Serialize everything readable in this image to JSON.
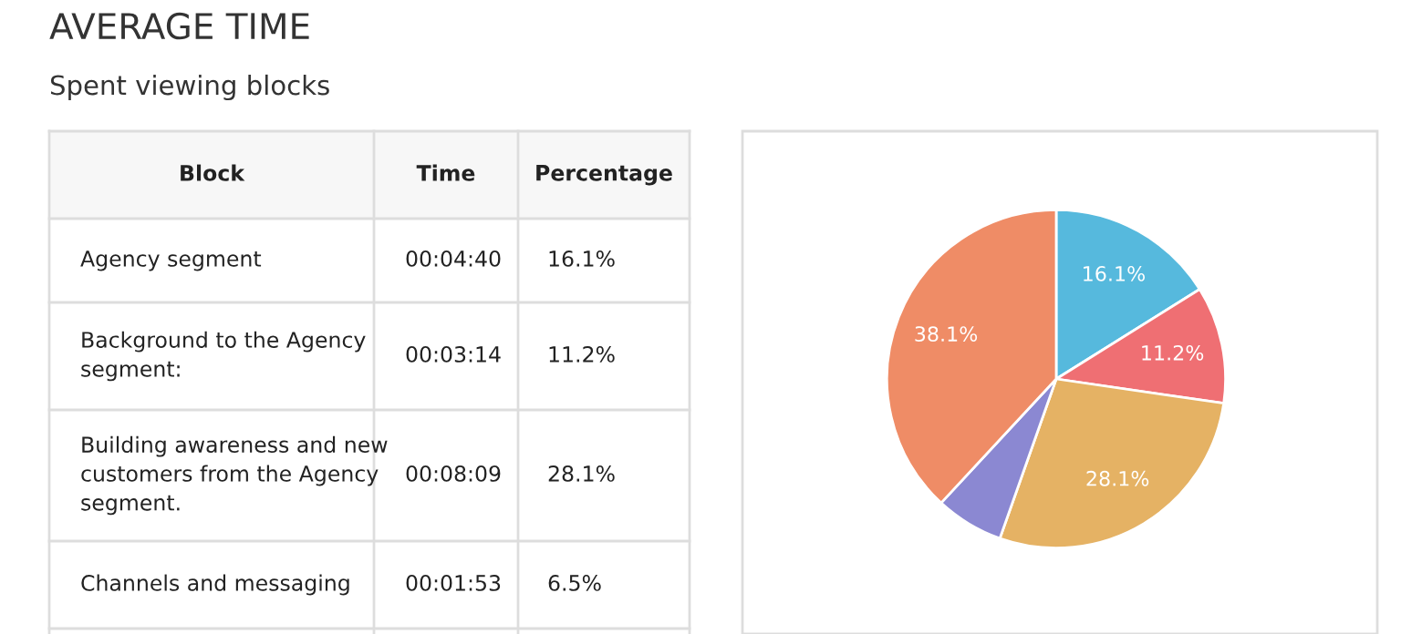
{
  "chart_data": {
    "type": "pie",
    "title": "AVERAGE TIME",
    "subtitle": "Spent viewing blocks",
    "categories": [
      null,
      null,
      null,
      null,
      null
    ],
    "values": [
      16.1,
      11.2,
      28.1,
      6.5,
      38.1
    ],
    "colors": [
      "#56b9dd",
      "#ef6f73",
      "#e5b264",
      "#8b88d2",
      "#ef8c66"
    ],
    "value_labels": [
      "16.1%",
      "11.2%",
      "28.1%",
      null,
      "38.1%"
    ],
    "annotations": [
      "Block",
      "Time",
      "Percentage",
      "Agency segment",
      "00:04:40",
      "16.1%",
      "Background to the Agency\nsegment:",
      "00:03:14",
      "11.2%",
      "Building awareness and new\ncustomers from the Agency\nsegment.",
      "00:08:09",
      "28.1%",
      "Channels and messaging",
      "00:01:53",
      "6.5%"
    ]
  }
}
